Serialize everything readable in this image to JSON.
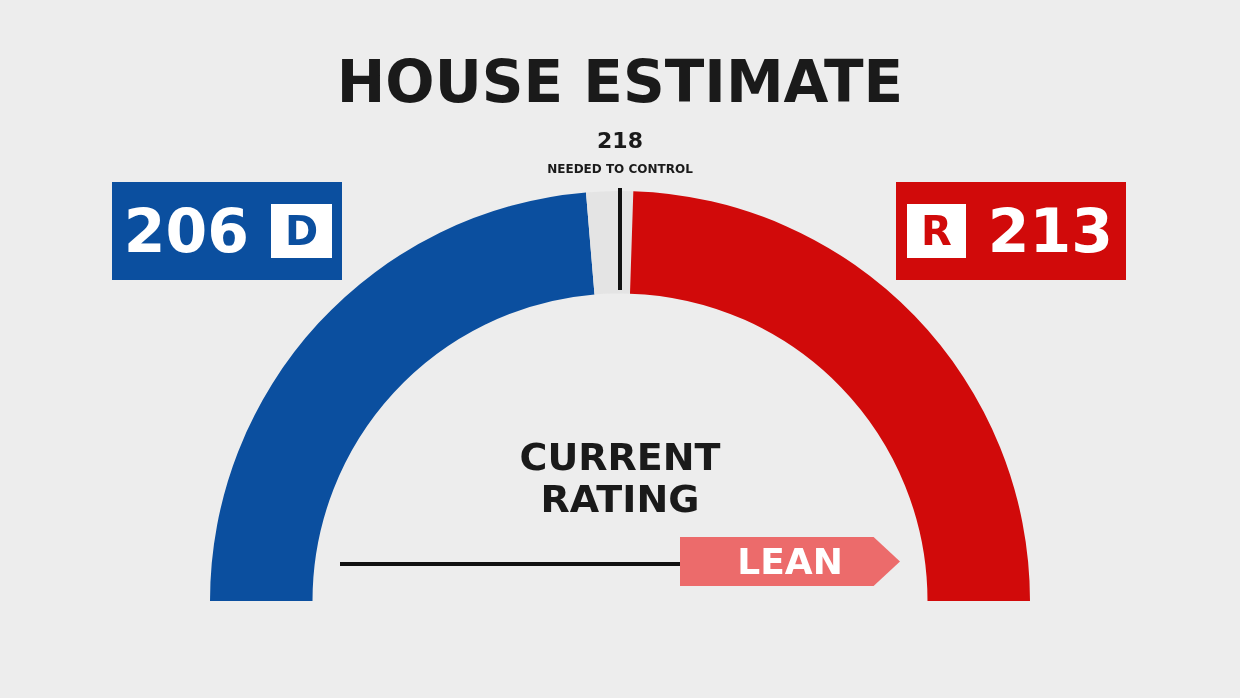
{
  "chart_data": {
    "type": "donut",
    "title": "HOUSE ESTIMATE",
    "categories": [
      "D",
      null,
      "R"
    ],
    "values": [
      206,
      16,
      213
    ],
    "colors": [
      "#0b4f9f",
      "#e4e4e4",
      "#d10a0a"
    ],
    "value_labels": [
      "206",
      null,
      "213"
    ],
    "annotations": [
      "218",
      "NEEDED TO CONTROL",
      "CURRENT RATING",
      "LEAN"
    ]
  }
}
